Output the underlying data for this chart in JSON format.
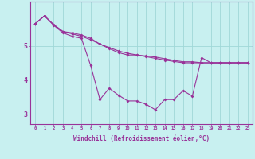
{
  "xlabel": "Windchill (Refroidissement éolien,°C)",
  "ylabel": "",
  "bg_color": "#c8f0f0",
  "grid_color": "#a0d8d8",
  "line_color": "#993399",
  "x_values": [
    0,
    1,
    2,
    3,
    4,
    5,
    6,
    7,
    8,
    9,
    10,
    11,
    12,
    13,
    14,
    15,
    16,
    17,
    18,
    19,
    20,
    21,
    22,
    23
  ],
  "line1": [
    5.65,
    5.88,
    5.62,
    5.42,
    5.35,
    5.28,
    5.18,
    5.05,
    4.95,
    4.85,
    4.78,
    4.73,
    4.68,
    4.63,
    4.58,
    4.54,
    4.5,
    4.5,
    4.5,
    4.5,
    4.5,
    4.5,
    4.5,
    4.5
  ],
  "line2": [
    5.65,
    5.88,
    5.62,
    5.42,
    5.38,
    5.32,
    5.22,
    5.05,
    4.92,
    4.8,
    4.73,
    4.73,
    4.7,
    4.67,
    4.62,
    4.57,
    4.53,
    4.53,
    4.5,
    4.5,
    4.5,
    4.5,
    4.5,
    4.5
  ],
  "line3": [
    5.65,
    5.88,
    5.6,
    5.38,
    5.28,
    5.22,
    4.42,
    3.42,
    3.75,
    3.55,
    3.38,
    3.38,
    3.28,
    3.12,
    3.42,
    3.42,
    3.68,
    3.52,
    4.65,
    4.5,
    4.5,
    4.5,
    4.5,
    4.5
  ],
  "ylim": [
    2.7,
    6.3
  ],
  "yticks": [
    3,
    4,
    5
  ],
  "xticks": [
    0,
    1,
    2,
    3,
    4,
    5,
    6,
    7,
    8,
    9,
    10,
    11,
    12,
    13,
    14,
    15,
    16,
    17,
    18,
    19,
    20,
    21,
    22,
    23
  ]
}
